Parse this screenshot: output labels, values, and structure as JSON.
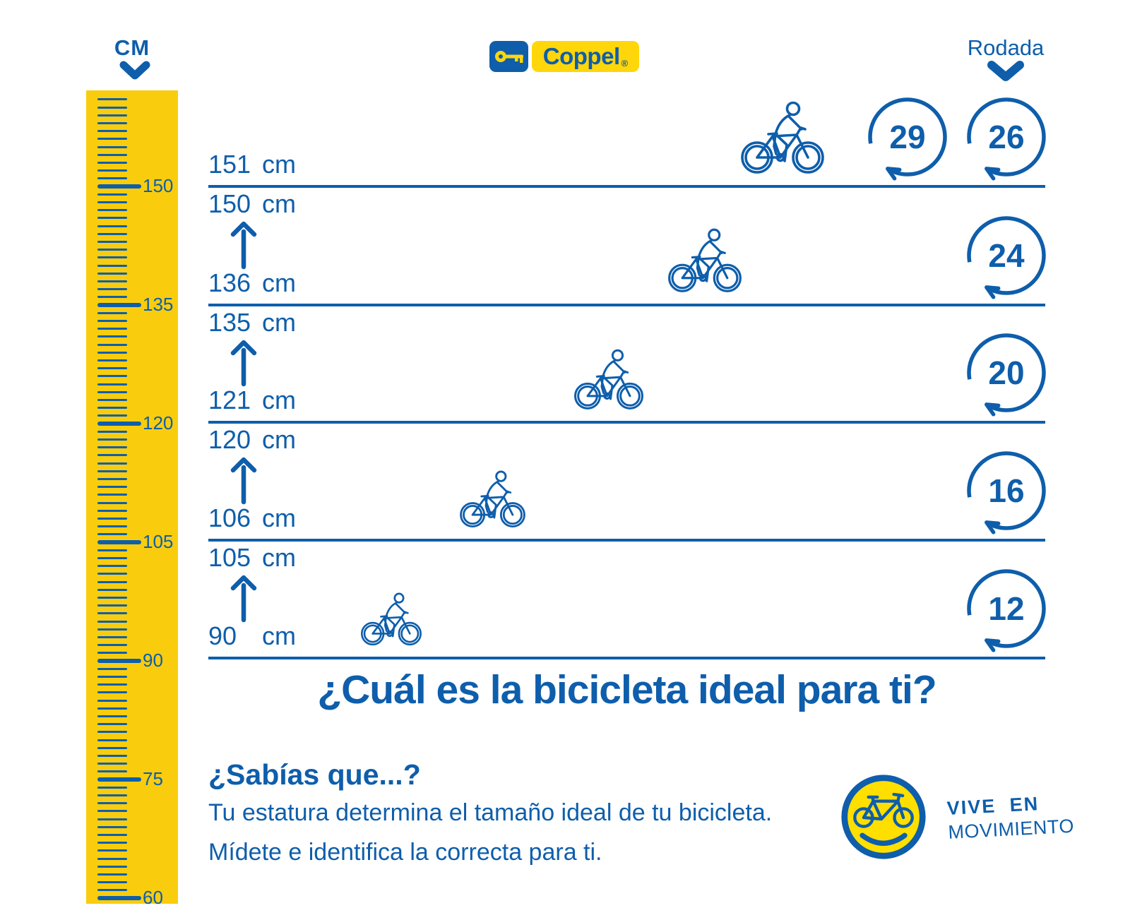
{
  "colors": {
    "blue": "#0E5EAB",
    "ruler_yellow": "#F9CD0D",
    "logo_yellow": "#FFD60A"
  },
  "header": {
    "cm_label": "CM",
    "rodada_label": "Rodada",
    "brand_name": "Coppel",
    "brand_registered": "®"
  },
  "ruler": {
    "unit": "cm",
    "top_cm": 161,
    "bottom_cm": 60,
    "major_step": 15,
    "major_labels": [
      "150",
      "135",
      "120",
      "105",
      "90",
      "75",
      "60"
    ]
  },
  "unit_label": "cm",
  "rows": [
    {
      "max_cm": "151",
      "min_cm": null,
      "wheels": [
        "29",
        "26"
      ],
      "rider": "adult-cyclist"
    },
    {
      "max_cm": "150",
      "min_cm": "136",
      "wheels": [
        "24"
      ],
      "rider": "teen-cyclist"
    },
    {
      "max_cm": "135",
      "min_cm": "121",
      "wheels": [
        "20"
      ],
      "rider": "youth-cyclist"
    },
    {
      "max_cm": "120",
      "min_cm": "106",
      "wheels": [
        "16"
      ],
      "rider": "child-cyclist"
    },
    {
      "max_cm": "105",
      "min_cm": "90",
      "wheels": [
        "12"
      ],
      "rider": "small-child-cyclist"
    }
  ],
  "title": "¿Cuál es la bicicleta ideal para ti?",
  "facts": {
    "heading": "¿Sabías que...?",
    "line1": "Tu estatura determina el tamaño ideal de tu bicicleta.",
    "line2": "Mídete e identifica la correcta para ti."
  },
  "badge": {
    "line1": "VIVE EN",
    "line2": "MOVIMIENTO"
  }
}
